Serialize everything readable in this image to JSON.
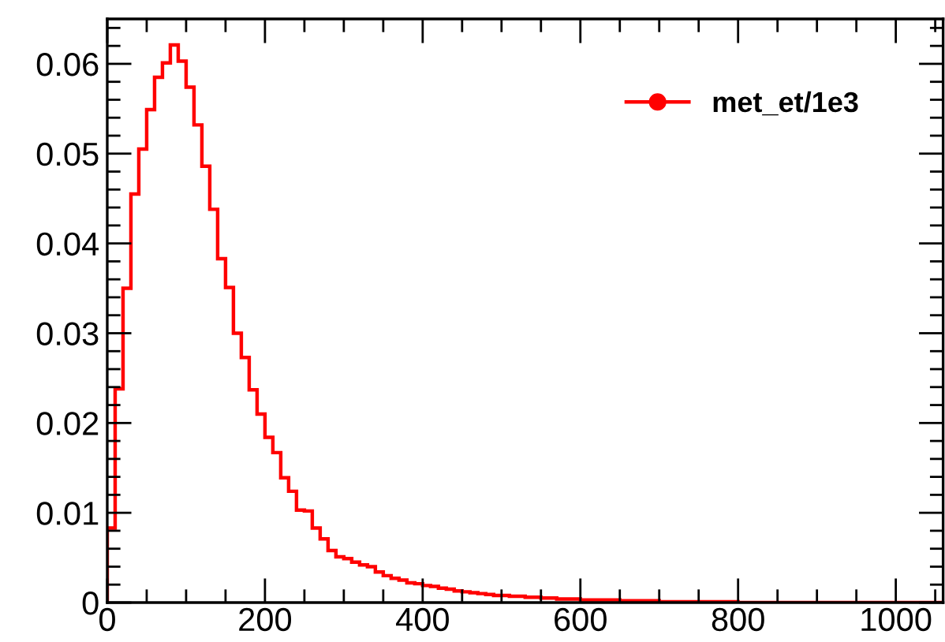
{
  "chart_data": {
    "type": "histogram",
    "bins": [
      0,
      10,
      20,
      30,
      40,
      50,
      60,
      70,
      80,
      90,
      100,
      110,
      120,
      130,
      140,
      150,
      160,
      170,
      180,
      190,
      200,
      210,
      220,
      230,
      240,
      250,
      260,
      270,
      280,
      290,
      300,
      310,
      320,
      330,
      340,
      350,
      360,
      370,
      380,
      390,
      400,
      410,
      420,
      430,
      440,
      450,
      460,
      470,
      480,
      490,
      500,
      510,
      520,
      530,
      540,
      550,
      560,
      570,
      580,
      590,
      600,
      610,
      620,
      630,
      640,
      650,
      660,
      670,
      680,
      690,
      700,
      710,
      720,
      730,
      740,
      750,
      760,
      770,
      780,
      790,
      800,
      810,
      820,
      830,
      840,
      850,
      860,
      870,
      880,
      890,
      900,
      910,
      920,
      930,
      940,
      950,
      960,
      970,
      980,
      990,
      1000,
      1010,
      1020,
      1030,
      1040,
      1050,
      1060
    ],
    "series": [
      {
        "name": "met_et/1e3",
        "color": "#ff0000",
        "values": [
          0.0083,
          0.0238,
          0.035,
          0.0455,
          0.0505,
          0.0549,
          0.0585,
          0.0601,
          0.0621,
          0.0603,
          0.0574,
          0.0532,
          0.0486,
          0.0438,
          0.0383,
          0.0351,
          0.03,
          0.0273,
          0.0237,
          0.021,
          0.0184,
          0.0167,
          0.0139,
          0.0124,
          0.0103,
          0.0102,
          0.0083,
          0.0071,
          0.0058,
          0.0051,
          0.0049,
          0.0045,
          0.0042,
          0.004,
          0.0034,
          0.003,
          0.0027,
          0.0025,
          0.0022,
          0.0021,
          0.0019,
          0.0018,
          0.0016,
          0.0015,
          0.0013,
          0.0012,
          0.0011,
          0.001,
          0.0009,
          0.0008,
          0.0008,
          0.0007,
          0.0007,
          0.0006,
          0.0006,
          0.0005,
          0.0005,
          0.0004,
          0.0004,
          0.0004,
          0.0003,
          0.0003,
          0.0003,
          0.0003,
          0.0003,
          0.0002,
          0.0002,
          0.0002,
          0.0002,
          0.0002,
          0.0001,
          0.0001,
          0.0001,
          0.0001,
          0.0001,
          0.0001,
          0.0001,
          0.0001,
          0.0001,
          0.0001,
          0,
          0,
          0,
          0,
          0,
          0,
          0,
          0,
          0,
          0,
          0,
          0,
          0,
          0,
          0,
          0,
          0,
          0,
          0,
          0,
          0,
          0,
          0,
          0,
          0,
          0
        ]
      }
    ],
    "xlim": [
      0,
      1060
    ],
    "xticks": [
      0,
      {
        "value": 50,
        "label": null
      },
      {
        "value": 100,
        "label": null
      },
      {
        "value": 150,
        "label": null
      },
      200,
      {
        "value": 250,
        "label": null
      },
      {
        "value": 300,
        "label": null
      },
      {
        "value": 350,
        "label": null
      },
      400,
      {
        "value": 450,
        "label": null
      },
      {
        "value": 500,
        "label": null
      },
      {
        "value": 550,
        "label": null
      },
      600,
      {
        "value": 650,
        "label": null
      },
      {
        "value": 700,
        "label": null
      },
      {
        "value": 750,
        "label": null
      },
      800,
      {
        "value": 850,
        "label": null
      },
      {
        "value": 900,
        "label": null
      },
      {
        "value": 950,
        "label": null
      },
      1000,
      {
        "value": 1050,
        "label": null
      }
    ],
    "ylim": [
      0,
      0.065
    ],
    "yticks": [
      0,
      {
        "value": 0.002,
        "label": null
      },
      {
        "value": 0.004,
        "label": null
      },
      {
        "value": 0.006,
        "label": null
      },
      {
        "value": 0.008,
        "label": null
      },
      0.01,
      {
        "value": 0.012,
        "label": null
      },
      {
        "value": 0.014,
        "label": null
      },
      {
        "value": 0.016,
        "label": null
      },
      {
        "value": 0.018,
        "label": null
      },
      0.02,
      {
        "value": 0.022,
        "label": null
      },
      {
        "value": 0.024,
        "label": null
      },
      {
        "value": 0.026,
        "label": null
      },
      {
        "value": 0.028,
        "label": null
      },
      0.03,
      {
        "value": 0.032,
        "label": null
      },
      {
        "value": 0.034,
        "label": null
      },
      {
        "value": 0.036,
        "label": null
      },
      {
        "value": 0.038,
        "label": null
      },
      0.04,
      {
        "value": 0.042,
        "label": null
      },
      {
        "value": 0.044,
        "label": null
      },
      {
        "value": 0.046,
        "label": null
      },
      {
        "value": 0.048,
        "label": null
      },
      0.05,
      {
        "value": 0.052,
        "label": null
      },
      {
        "value": 0.054,
        "label": null
      },
      {
        "value": 0.056,
        "label": null
      },
      {
        "value": 0.058,
        "label": null
      },
      0.06,
      {
        "value": 0.062,
        "label": null
      },
      {
        "value": 0.064,
        "label": null
      }
    ],
    "grid": false,
    "legend": "top right",
    "marker": "circle"
  }
}
